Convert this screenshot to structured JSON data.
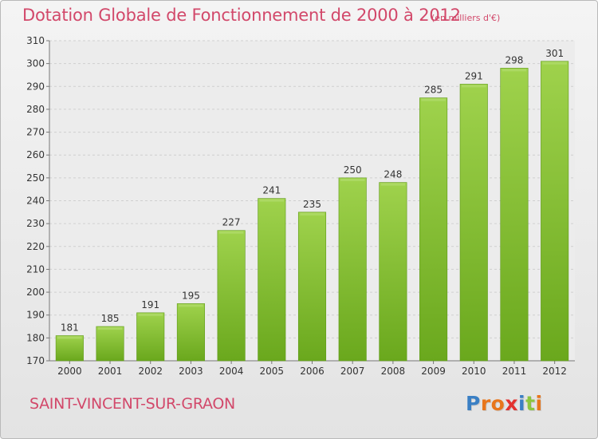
{
  "header": {
    "title": "Dotation Globale de Fonctionnement de 2000 à 2012",
    "unit": "(en milliers d'€)"
  },
  "footer": {
    "commune": "SAINT-VINCENT-SUR-GRAON",
    "brand": "Proxiti",
    "brand_letter_colors": [
      "#3a7fc4",
      "#e8761c",
      "#e8761c",
      "#e3322f",
      "#3a7fc4",
      "#8cc63f",
      "#e8761c"
    ]
  },
  "chart_data": {
    "type": "bar",
    "title": "Dotation Globale de Fonctionnement de 2000 à 2012",
    "xlabel": "",
    "ylabel": "",
    "categories": [
      "2000",
      "2001",
      "2002",
      "2003",
      "2004",
      "2005",
      "2006",
      "2007",
      "2008",
      "2009",
      "2010",
      "2011",
      "2012"
    ],
    "values": [
      181,
      185,
      191,
      195,
      227,
      241,
      235,
      250,
      248,
      285,
      291,
      298,
      301
    ],
    "ylim": [
      170,
      310
    ],
    "yticks": [
      170,
      180,
      190,
      200,
      210,
      220,
      230,
      240,
      250,
      260,
      270,
      280,
      290,
      300,
      310
    ],
    "grid": true,
    "bar_color": "#7fbf2a",
    "bar_color_top": "#9dd34a"
  }
}
